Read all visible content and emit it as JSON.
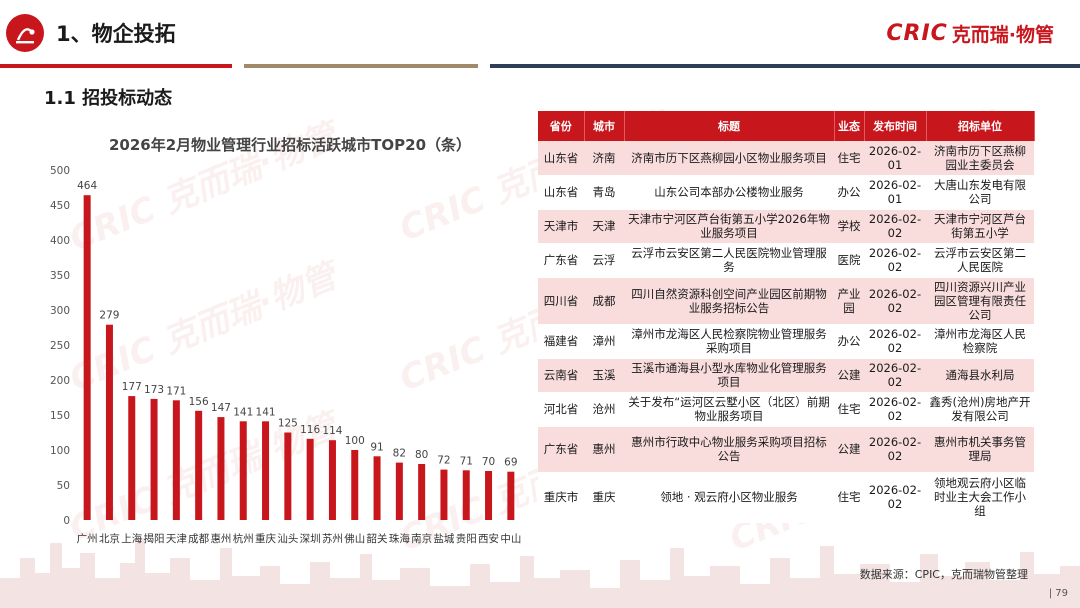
{
  "header": {
    "title": "1、物企投拓",
    "brand_cric": "CRIC",
    "brand_cn": "克而瑞·物管"
  },
  "section": {
    "subtitle": "1.1 招投标动态"
  },
  "watermark": {
    "text": "CRIC 克而瑞·物管"
  },
  "colors": {
    "brand_red": "#c8161d",
    "row_pink": "#f9dcdc",
    "rule_red": "#c8161d",
    "rule_tan": "#a08a6a",
    "rule_navy": "#2e3e56"
  },
  "chart_data": {
    "type": "bar",
    "title": "2026年2月物业管理行业招标活跃城市TOP20（条）",
    "categories": [
      "广州",
      "北京",
      "上海",
      "揭阳",
      "天津",
      "成都",
      "惠州",
      "杭州",
      "重庆",
      "汕头",
      "深圳",
      "苏州",
      "佛山",
      "韶关",
      "珠海",
      "南京",
      "盐城",
      "贵阳",
      "西安",
      "中山"
    ],
    "values": [
      464,
      279,
      177,
      173,
      171,
      156,
      147,
      141,
      141,
      125,
      116,
      114,
      100,
      91,
      82,
      80,
      72,
      71,
      70,
      69
    ],
    "ylim": [
      0,
      500
    ],
    "yticks": [
      0,
      50,
      100,
      150,
      200,
      250,
      300,
      350,
      400,
      450,
      500
    ],
    "grid": false,
    "bar_color": "#c8161d"
  },
  "table": {
    "headers": [
      "省份",
      "城市",
      "标题",
      "业态",
      "发布时间",
      "招标单位"
    ],
    "rows": [
      [
        "山东省",
        "济南",
        "济南市历下区燕柳园小区物业服务项目",
        "住宅",
        "2026-02-01",
        "济南市历下区燕柳园业主委员会"
      ],
      [
        "山东省",
        "青岛",
        "山东公司本部办公楼物业服务",
        "办公",
        "2026-02-01",
        "大唐山东发电有限公司"
      ],
      [
        "天津市",
        "天津",
        "天津市宁河区芦台街第五小学2026年物业服务项目",
        "学校",
        "2026-02-02",
        "天津市宁河区芦台街第五小学"
      ],
      [
        "广东省",
        "云浮",
        "云浮市云安区第二人民医院物业管理服务",
        "医院",
        "2026-02-02",
        "云浮市云安区第二人民医院"
      ],
      [
        "四川省",
        "成都",
        "四川自然资源科创空间产业园区前期物业服务招标公告",
        "产业园",
        "2026-02-02",
        "四川资源兴川产业园区管理有限责任公司"
      ],
      [
        "福建省",
        "漳州",
        "漳州市龙海区人民检察院物业管理服务采购项目",
        "办公",
        "2026-02-02",
        "漳州市龙海区人民检察院"
      ],
      [
        "云南省",
        "玉溪",
        "玉溪市通海县小型水库物业化管理服务项目",
        "公建",
        "2026-02-02",
        "通海县水利局"
      ],
      [
        "河北省",
        "沧州",
        "关于发布“运河区云墅小区（北区）前期物业服务项目",
        "住宅",
        "2026-02-02",
        "鑫秀(沧州)房地产开发有限公司"
      ],
      [
        "广东省",
        "惠州",
        "惠州市行政中心物业服务采购项目招标公告",
        "公建",
        "2026-02-02",
        "惠州市机关事务管理局"
      ],
      [
        "重庆市",
        "重庆",
        "领地 · 观云府小区物业服务",
        "住宅",
        "2026-02-02",
        "领地观云府小区临时业主大会工作小组"
      ]
    ]
  },
  "footer": {
    "source": "数据来源：CPIC，克而瑞物管整理",
    "page": "| 79"
  }
}
